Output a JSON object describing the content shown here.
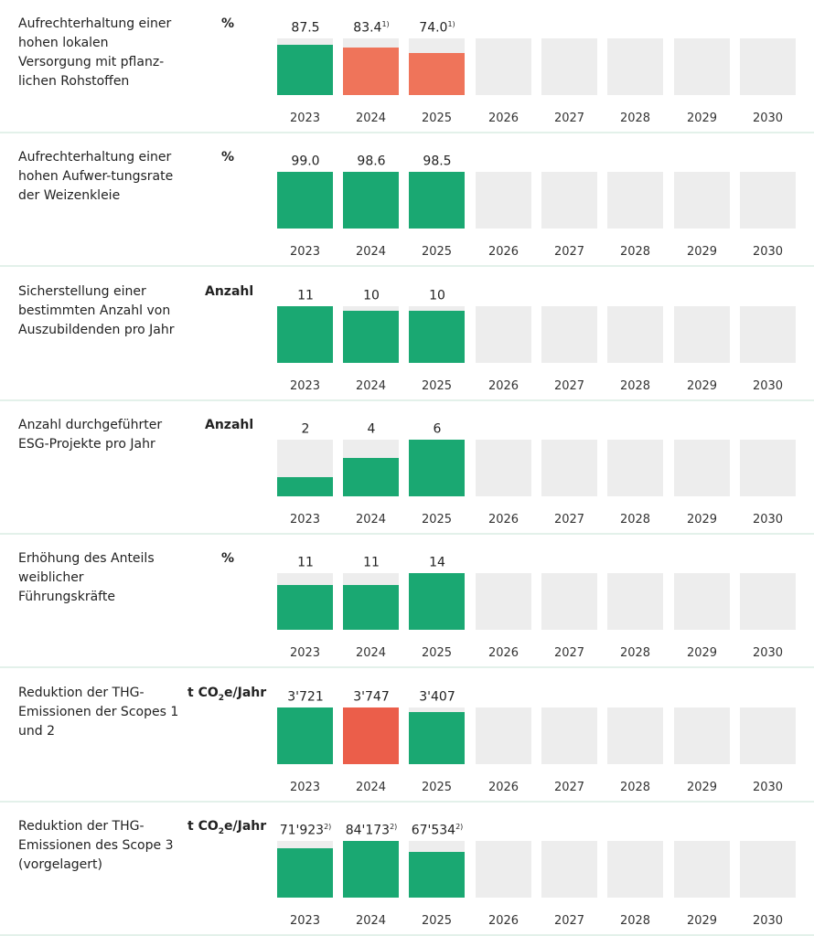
{
  "years": [
    "2023",
    "2024",
    "2025",
    "2026",
    "2027",
    "2028",
    "2029",
    "2030"
  ],
  "colors": {
    "on_track": "#1aa872",
    "off_track_light": "#ef745a",
    "off_track": "#eb5e4a",
    "empty": "#ededed"
  },
  "chart_data": {
    "type": "bar",
    "categories": [
      "2023",
      "2024",
      "2025",
      "2026",
      "2027",
      "2028",
      "2029",
      "2030"
    ],
    "rows": [
      {
        "label": "Aufrechterhaltung einer hohen lokalen Versorgung mit pflanz-lichen Rohstoffen",
        "unit": "%",
        "unit_sub": "",
        "unit_rest": "",
        "values": [
          {
            "value": "87.5",
            "sup": "",
            "fill": 0.89,
            "status": "on_track"
          },
          {
            "value": "83.4",
            "sup": "1)",
            "fill": 0.84,
            "status": "off_track_light"
          },
          {
            "value": "74.0",
            "sup": "1)",
            "fill": 0.74,
            "status": "off_track_light"
          }
        ]
      },
      {
        "label": "Aufrechterhaltung einer hohen Aufwer-tungsrate der Weizenkleie",
        "unit": "%",
        "unit_sub": "",
        "unit_rest": "",
        "values": [
          {
            "value": "99.0",
            "sup": "",
            "fill": 1,
            "status": "on_track"
          },
          {
            "value": "98.6",
            "sup": "",
            "fill": 1,
            "status": "on_track"
          },
          {
            "value": "98.5",
            "sup": "",
            "fill": 1,
            "status": "on_track"
          }
        ]
      },
      {
        "label": "Sicherstellung einer bestimmten Anzahl von Auszubildenden pro Jahr",
        "unit": "Anzahl",
        "unit_sub": "",
        "unit_rest": "",
        "values": [
          {
            "value": "11",
            "sup": "",
            "fill": 1,
            "status": "on_track"
          },
          {
            "value": "10",
            "sup": "",
            "fill": 0.91,
            "status": "on_track"
          },
          {
            "value": "10",
            "sup": "",
            "fill": 0.91,
            "status": "on_track"
          }
        ]
      },
      {
        "label": "Anzahl durchgeführter ESG-Projekte pro Jahr",
        "unit": "Anzahl",
        "unit_sub": "",
        "unit_rest": "",
        "values": [
          {
            "value": "2",
            "sup": "",
            "fill": 0.33,
            "status": "on_track"
          },
          {
            "value": "4",
            "sup": "",
            "fill": 0.67,
            "status": "on_track"
          },
          {
            "value": "6",
            "sup": "",
            "fill": 1,
            "status": "on_track"
          }
        ]
      },
      {
        "label": "Erhöhung des Anteils weiblicher Führungskräfte",
        "unit": "%",
        "unit_sub": "",
        "unit_rest": "",
        "values": [
          {
            "value": "11",
            "sup": "",
            "fill": 0.79,
            "status": "on_track"
          },
          {
            "value": "11",
            "sup": "",
            "fill": 0.79,
            "status": "on_track"
          },
          {
            "value": "14",
            "sup": "",
            "fill": 1,
            "status": "on_track"
          }
        ]
      },
      {
        "label": "Reduktion der THG-Emissionen der Scopes 1 und 2",
        "unit": "t CO",
        "unit_sub": "2",
        "unit_rest": "e/Jahr",
        "values": [
          {
            "value": "3'721",
            "sup": "",
            "fill": 1,
            "status": "on_track"
          },
          {
            "value": "3'747",
            "sup": "",
            "fill": 1,
            "status": "off_track"
          },
          {
            "value": "3'407",
            "sup": "",
            "fill": 0.91,
            "status": "on_track"
          }
        ]
      },
      {
        "label": "Reduktion der THG-Emissionen des Scope 3 (vorgelagert)",
        "unit": "t CO",
        "unit_sub": "2",
        "unit_rest": "e/Jahr",
        "values": [
          {
            "value": "71'923",
            "sup": "2)",
            "fill": 0.86,
            "status": "on_track"
          },
          {
            "value": "84'173",
            "sup": "2)",
            "fill": 1,
            "status": "on_track"
          },
          {
            "value": "67'534",
            "sup": "2)",
            "fill": 0.8,
            "status": "on_track"
          }
        ]
      }
    ]
  }
}
